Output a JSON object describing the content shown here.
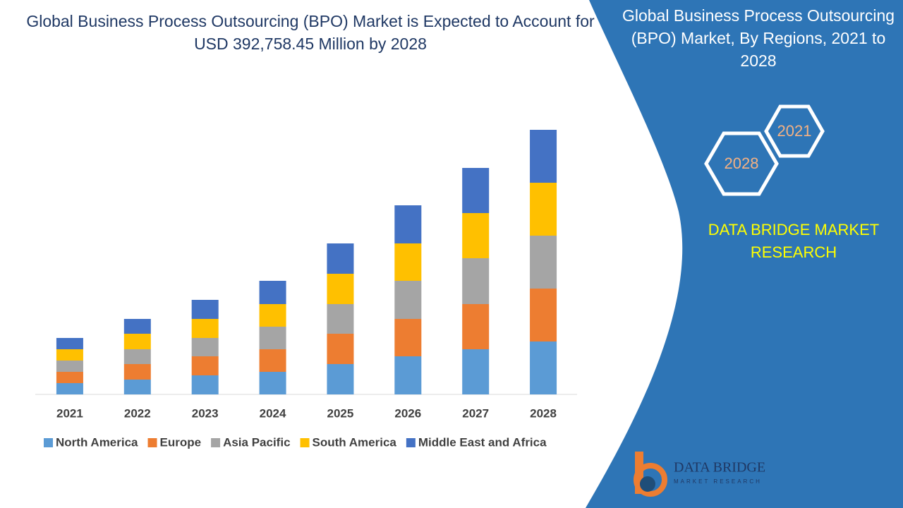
{
  "chart_data": {
    "type": "bar",
    "stacked": true,
    "title": "Global Business Process Outsourcing (BPO) Market is Expected to Account for USD 392,758.45 Million by 2028",
    "categories": [
      "2021",
      "2022",
      "2023",
      "2024",
      "2025",
      "2026",
      "2027",
      "2028"
    ],
    "series": [
      {
        "name": "North America",
        "color": "#5b9bd5",
        "values": [
          16,
          21,
          27,
          32,
          43,
          54,
          64,
          75
        ]
      },
      {
        "name": "Europe",
        "color": "#ed7d31",
        "values": [
          16,
          22,
          27,
          32,
          43,
          53,
          64,
          75
        ]
      },
      {
        "name": "Asia Pacific",
        "color": "#a5a5a5",
        "values": [
          16,
          21,
          26,
          32,
          42,
          54,
          65,
          75
        ]
      },
      {
        "name": "South America",
        "color": "#ffc000",
        "values": [
          16,
          22,
          27,
          32,
          43,
          53,
          64,
          75
        ]
      },
      {
        "name": "Middle East and Africa",
        "color": "#4472c4",
        "values": [
          16,
          21,
          27,
          33,
          43,
          54,
          64,
          75
        ]
      }
    ]
  },
  "panel": {
    "title": "Global Business Process Outsourcing (BPO) Market, By Regions, 2021 to 2028",
    "hexagons": [
      "2021",
      "2028"
    ],
    "brand": "DATA BRIDGE MARKET RESEARCH"
  },
  "logo": {
    "name": "DATA BRIDGE",
    "tagline": "MARKET RESEARCH"
  }
}
